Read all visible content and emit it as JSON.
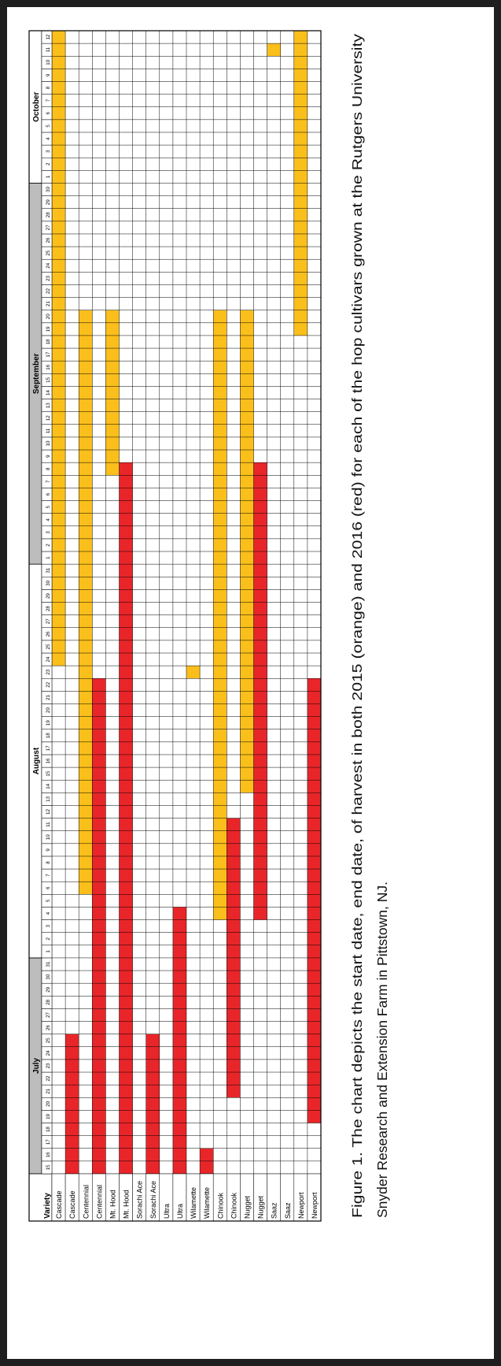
{
  "chart_data": {
    "type": "table",
    "title": "",
    "variety_header": "Variety",
    "months": [
      {
        "name": "July",
        "days": [
          15,
          16,
          17,
          18,
          19,
          20,
          21,
          22,
          23,
          24,
          25,
          26,
          27,
          28,
          29,
          30,
          31
        ]
      },
      {
        "name": "August",
        "days": [
          1,
          2,
          3,
          4,
          5,
          6,
          7,
          8,
          9,
          10,
          11,
          12,
          13,
          14,
          15,
          16,
          17,
          18,
          19,
          20,
          21,
          22,
          23,
          24,
          25,
          26,
          27,
          28,
          29,
          30,
          31
        ]
      },
      {
        "name": "September",
        "days": [
          1,
          2,
          3,
          4,
          5,
          6,
          7,
          8,
          9,
          10,
          11,
          12,
          13,
          14,
          15,
          16,
          17,
          18,
          19,
          20,
          21,
          22,
          23,
          24,
          25,
          26,
          27,
          28,
          29,
          30
        ]
      },
      {
        "name": "October",
        "days": [
          1,
          2,
          3,
          4,
          5,
          6,
          7,
          8,
          9,
          10,
          11,
          12
        ]
      }
    ],
    "legend": {
      "orange": "2015",
      "red": "2016"
    },
    "colors": {
      "2015": "#FBBF1B",
      "2016": "#E8262A",
      "month_band": "#BDBDBD"
    },
    "rows": [
      {
        "variety": "Cascade",
        "year": 2015,
        "start": "2015-08-24",
        "end": "2015-10-12"
      },
      {
        "variety": "Cascade",
        "year": 2016,
        "start": "2016-07-15",
        "end": "2016-07-25"
      },
      {
        "variety": "Centennial",
        "year": 2015,
        "start": "2015-08-06",
        "end": "2015-09-20"
      },
      {
        "variety": "Centennial",
        "year": 2016,
        "start": "2016-07-15",
        "end": "2016-08-22"
      },
      {
        "variety": "Mt. Hood",
        "year": 2015,
        "start": "2015-09-08",
        "end": "2015-09-20"
      },
      {
        "variety": "Mt. Hood",
        "year": 2016,
        "start": "2016-07-15",
        "end": "2016-09-08"
      },
      {
        "variety": "Sorachi Ace",
        "year": 2015,
        "start": null,
        "end": null
      },
      {
        "variety": "Sorachi Ace",
        "year": 2016,
        "start": "2016-07-15",
        "end": "2016-07-25"
      },
      {
        "variety": "Ultra",
        "year": 2015,
        "start": null,
        "end": null
      },
      {
        "variety": "Ultra",
        "year": 2016,
        "start": "2016-07-15",
        "end": "2016-08-04"
      },
      {
        "variety": "Wilamette",
        "year": 2015,
        "start": "2015-08-23",
        "end": "2015-08-23"
      },
      {
        "variety": "Wilamette",
        "year": 2016,
        "start": "2016-07-15",
        "end": "2016-07-16"
      },
      {
        "variety": "Chinook",
        "year": 2015,
        "start": "2015-08-04",
        "end": "2015-09-20"
      },
      {
        "variety": "Chinook",
        "year": 2016,
        "start": "2016-07-21",
        "end": "2016-08-11"
      },
      {
        "variety": "Nugget",
        "year": 2015,
        "start": "2015-08-14",
        "end": "2015-09-20"
      },
      {
        "variety": "Nugget",
        "year": 2016,
        "start": "2016-08-04",
        "end": "2016-09-08"
      },
      {
        "variety": "Saaz",
        "year": 2015,
        "start": "2015-10-11",
        "end": "2015-10-11"
      },
      {
        "variety": "Saaz",
        "year": 2016,
        "start": null,
        "end": null
      },
      {
        "variety": "Newport",
        "year": 2015,
        "start": "2015-09-19",
        "end": "2015-10-12"
      },
      {
        "variety": "Newport",
        "year": 2016,
        "start": "2016-07-19",
        "end": "2016-08-22"
      }
    ]
  },
  "caption": {
    "line1": "Figure 1.  The chart depicts the start date, end date, of harvest in both 2015 (orange) and 2016 (red) for each of the hop cultivars grown at the Rutgers University",
    "line2": "Snyder Research and Extension Farm in Pittstown, NJ."
  }
}
